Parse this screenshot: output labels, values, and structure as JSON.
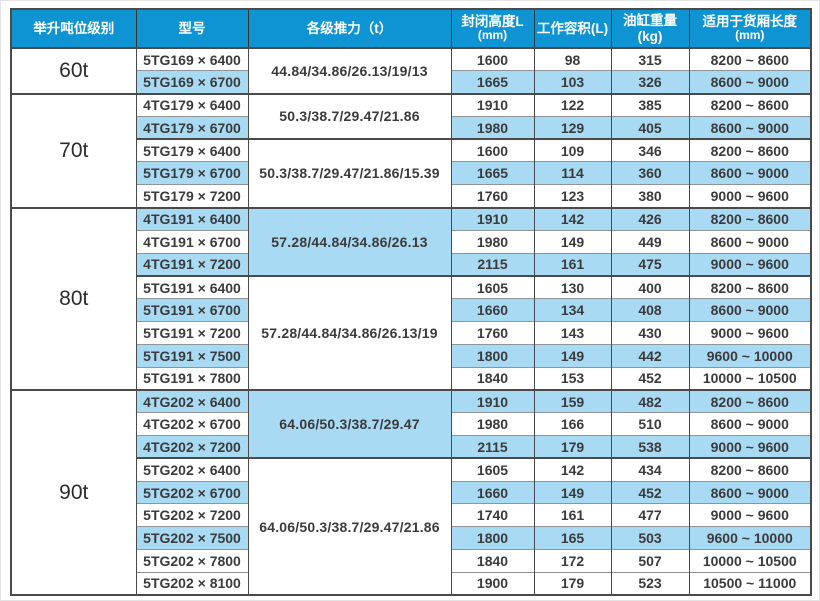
{
  "colors": {
    "header_bg": "#0e94d3",
    "row_highlight_blue": "#a9daf3",
    "border_dark": "#4a4a4a",
    "border_light": "#909497",
    "text": "#3b3b3d",
    "header_text": "#ffffff"
  },
  "table": {
    "headers": [
      {
        "label": "举升吨位级别",
        "sub": ""
      },
      {
        "label": "型号",
        "sub": ""
      },
      {
        "label": "各级推力（t）",
        "sub": ""
      },
      {
        "label": "封闭高度L",
        "sub": "(mm)"
      },
      {
        "label": "工作容积(L)",
        "sub": ""
      },
      {
        "label": "油缸重量(kg)",
        "sub": ""
      },
      {
        "label": "适用于货厢长度",
        "sub": "(mm)"
      }
    ],
    "sections": [
      {
        "tonnage": "60t",
        "groups": [
          {
            "thrust": "44.84/34.86/26.13/19/13",
            "thrust_highlight": false,
            "rows": [
              {
                "model": "5TG169 × 6400",
                "closed_height": "1600",
                "working_volume": "98",
                "weight": "315",
                "box_length": "8200 ~ 8600",
                "highlight": false
              },
              {
                "model": "5TG169 × 6700",
                "closed_height": "1665",
                "working_volume": "103",
                "weight": "326",
                "box_length": "8600 ~ 9000",
                "highlight": true
              }
            ]
          }
        ]
      },
      {
        "tonnage": "70t",
        "groups": [
          {
            "thrust": "50.3/38.7/29.47/21.86",
            "thrust_highlight": false,
            "rows": [
              {
                "model": "4TG179 × 6400",
                "closed_height": "1910",
                "working_volume": "122",
                "weight": "385",
                "box_length": "8200 ~ 8600",
                "highlight": false
              },
              {
                "model": "4TG179 × 6700",
                "closed_height": "1980",
                "working_volume": "129",
                "weight": "405",
                "box_length": "8600 ~ 9000",
                "highlight": true
              }
            ]
          },
          {
            "thrust": "50.3/38.7/29.47/21.86/15.39",
            "thrust_highlight": false,
            "rows": [
              {
                "model": "5TG179 × 6400",
                "closed_height": "1600",
                "working_volume": "109",
                "weight": "346",
                "box_length": "8200 ~ 8600",
                "highlight": false
              },
              {
                "model": "5TG179 × 6700",
                "closed_height": "1665",
                "working_volume": "114",
                "weight": "360",
                "box_length": "8600 ~ 9000",
                "highlight": true
              },
              {
                "model": "5TG179 × 7200",
                "closed_height": "1760",
                "working_volume": "123",
                "weight": "380",
                "box_length": "9000 ~ 9600",
                "highlight": false
              }
            ]
          }
        ]
      },
      {
        "tonnage": "80t",
        "groups": [
          {
            "thrust": "57.28/44.84/34.86/26.13",
            "thrust_highlight": true,
            "rows": [
              {
                "model": "4TG191 × 6400",
                "closed_height": "1910",
                "working_volume": "142",
                "weight": "426",
                "box_length": "8200 ~ 8600",
                "highlight": true
              },
              {
                "model": "4TG191 × 6700",
                "closed_height": "1980",
                "working_volume": "149",
                "weight": "449",
                "box_length": "8600 ~ 9000",
                "highlight": false
              },
              {
                "model": "4TG191 × 7200",
                "closed_height": "2115",
                "working_volume": "161",
                "weight": "475",
                "box_length": "9000 ~ 9600",
                "highlight": true
              }
            ]
          },
          {
            "thrust": "57.28/44.84/34.86/26.13/19",
            "thrust_highlight": false,
            "rows": [
              {
                "model": "5TG191 × 6400",
                "closed_height": "1605",
                "working_volume": "130",
                "weight": "400",
                "box_length": "8200 ~ 8600",
                "highlight": false
              },
              {
                "model": "5TG191 × 6700",
                "closed_height": "1660",
                "working_volume": "134",
                "weight": "408",
                "box_length": "8600 ~ 9000",
                "highlight": true
              },
              {
                "model": "5TG191 × 7200",
                "closed_height": "1760",
                "working_volume": "143",
                "weight": "430",
                "box_length": "9000 ~ 9600",
                "highlight": false
              },
              {
                "model": "5TG191 × 7500",
                "closed_height": "1800",
                "working_volume": "149",
                "weight": "442",
                "box_length": "9600 ~ 10000",
                "highlight": true
              },
              {
                "model": "5TG191 × 7800",
                "closed_height": "1840",
                "working_volume": "153",
                "weight": "452",
                "box_length": "10000 ~ 10500",
                "highlight": false
              }
            ]
          }
        ]
      },
      {
        "tonnage": "90t",
        "groups": [
          {
            "thrust": "64.06/50.3/38.7/29.47",
            "thrust_highlight": true,
            "rows": [
              {
                "model": "4TG202 × 6400",
                "closed_height": "1910",
                "working_volume": "159",
                "weight": "482",
                "box_length": "8200 ~ 8600",
                "highlight": true
              },
              {
                "model": "4TG202 × 6700",
                "closed_height": "1980",
                "working_volume": "166",
                "weight": "510",
                "box_length": "8600 ~ 9000",
                "highlight": false
              },
              {
                "model": "4TG202 × 7200",
                "closed_height": "2115",
                "working_volume": "179",
                "weight": "538",
                "box_length": "9000 ~ 9600",
                "highlight": true
              }
            ]
          },
          {
            "thrust": "64.06/50.3/38.7/29.47/21.86",
            "thrust_highlight": false,
            "rows": [
              {
                "model": "5TG202 × 6400",
                "closed_height": "1605",
                "working_volume": "142",
                "weight": "434",
                "box_length": "8200 ~ 8600",
                "highlight": false
              },
              {
                "model": "5TG202 × 6700",
                "closed_height": "1660",
                "working_volume": "149",
                "weight": "452",
                "box_length": "8600 ~ 9000",
                "highlight": true
              },
              {
                "model": "5TG202 × 7200",
                "closed_height": "1740",
                "working_volume": "161",
                "weight": "477",
                "box_length": "9000 ~ 9600",
                "highlight": false
              },
              {
                "model": "5TG202 × 7500",
                "closed_height": "1800",
                "working_volume": "165",
                "weight": "503",
                "box_length": "9600 ~ 10000",
                "highlight": true
              },
              {
                "model": "5TG202 × 7800",
                "closed_height": "1840",
                "working_volume": "172",
                "weight": "507",
                "box_length": "10000 ~ 10500",
                "highlight": false
              },
              {
                "model": "5TG202 × 8100",
                "closed_height": "1900",
                "working_volume": "179",
                "weight": "523",
                "box_length": "10500 ~ 11000",
                "highlight": false
              }
            ]
          }
        ]
      }
    ]
  }
}
